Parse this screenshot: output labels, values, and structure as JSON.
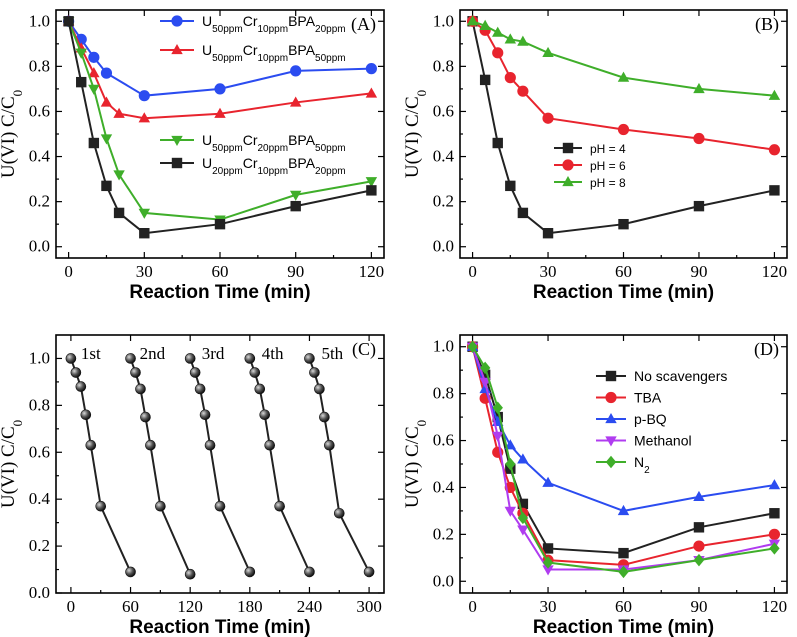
{
  "chart_data": [
    {
      "panel": "(A)",
      "type": "line",
      "xlabel": "Reaction Time (min)",
      "ylabel": "U(VI) C/C0",
      "xlim": [
        -5,
        125
      ],
      "ylim": [
        -0.05,
        1.05
      ],
      "xticks": [
        0,
        30,
        60,
        90,
        120
      ],
      "yticks": [
        0.0,
        0.2,
        0.4,
        0.6,
        0.8,
        1.0
      ],
      "series": [
        {
          "name": "U50ppmCr10ppmBPA20ppm",
          "label_parts": [
            [
              "U",
              ""
            ],
            [
              "50ppm",
              "sub"
            ],
            [
              "Cr",
              ""
            ],
            [
              "10ppm",
              "sub"
            ],
            [
              "BPA",
              ""
            ],
            [
              "20ppm",
              "sub"
            ]
          ],
          "color": "#2b4cf0",
          "marker": "circle",
          "x": [
            0,
            5,
            10,
            15,
            30,
            60,
            90,
            120
          ],
          "y": [
            1.0,
            0.92,
            0.84,
            0.77,
            0.67,
            0.7,
            0.78,
            0.79
          ]
        },
        {
          "name": "U50ppmCr10ppmBPA50ppm",
          "label_parts": [
            [
              "U",
              ""
            ],
            [
              "50ppm",
              "sub"
            ],
            [
              "Cr",
              ""
            ],
            [
              "10ppm",
              "sub"
            ],
            [
              "BPA",
              ""
            ],
            [
              "50ppm",
              "sub"
            ]
          ],
          "color": "#e8242e",
          "marker": "triangle-up",
          "x": [
            0,
            5,
            10,
            15,
            20,
            30,
            60,
            90,
            120
          ],
          "y": [
            1.0,
            0.88,
            0.77,
            0.64,
            0.59,
            0.57,
            0.59,
            0.64,
            0.68
          ]
        },
        {
          "name": "U50ppmCr20ppmBPA50ppm",
          "label_parts": [
            [
              "U",
              ""
            ],
            [
              "50ppm",
              "sub"
            ],
            [
              "Cr",
              ""
            ],
            [
              "20ppm",
              "sub"
            ],
            [
              "BPA",
              ""
            ],
            [
              "50ppm",
              "sub"
            ]
          ],
          "color": "#3fae2a",
          "marker": "triangle-down",
          "x": [
            0,
            5,
            10,
            15,
            20,
            30,
            60,
            90,
            120
          ],
          "y": [
            1.0,
            0.86,
            0.7,
            0.48,
            0.32,
            0.15,
            0.12,
            0.23,
            0.29
          ]
        },
        {
          "name": "U20ppmCr10ppmBPA20ppm",
          "label_parts": [
            [
              "U",
              ""
            ],
            [
              "20ppm",
              "sub"
            ],
            [
              "Cr",
              ""
            ],
            [
              "10ppm",
              "sub"
            ],
            [
              "BPA",
              ""
            ],
            [
              "20ppm",
              "sub"
            ]
          ],
          "color": "#222222",
          "marker": "square",
          "x": [
            0,
            5,
            10,
            15,
            20,
            30,
            60,
            90,
            120
          ],
          "y": [
            1.0,
            0.73,
            0.46,
            0.27,
            0.15,
            0.06,
            0.1,
            0.18,
            0.25
          ]
        }
      ]
    },
    {
      "panel": "(B)",
      "type": "line",
      "xlabel": "Reaction Time (min)",
      "ylabel": "U(VI) C/C0",
      "xlim": [
        -5,
        125
      ],
      "ylim": [
        -0.05,
        1.05
      ],
      "xticks": [
        0,
        30,
        60,
        90,
        120
      ],
      "yticks": [
        0.0,
        0.2,
        0.4,
        0.6,
        0.8,
        1.0
      ],
      "series": [
        {
          "name": "pH = 4",
          "color": "#222222",
          "marker": "square",
          "x": [
            0,
            5,
            10,
            15,
            20,
            30,
            60,
            90,
            120
          ],
          "y": [
            1.0,
            0.74,
            0.46,
            0.27,
            0.15,
            0.06,
            0.1,
            0.18,
            0.25
          ]
        },
        {
          "name": "pH = 6",
          "color": "#e8242e",
          "marker": "circle",
          "x": [
            0,
            5,
            10,
            15,
            20,
            30,
            60,
            90,
            120
          ],
          "y": [
            1.0,
            0.96,
            0.86,
            0.75,
            0.69,
            0.57,
            0.52,
            0.48,
            0.43
          ]
        },
        {
          "name": "pH = 8",
          "color": "#3fae2a",
          "marker": "triangle-up",
          "x": [
            0,
            5,
            10,
            15,
            20,
            30,
            60,
            90,
            120
          ],
          "y": [
            1.0,
            0.98,
            0.95,
            0.92,
            0.91,
            0.86,
            0.75,
            0.7,
            0.67
          ]
        }
      ]
    },
    {
      "panel": "(C)",
      "type": "line",
      "xlabel": "Reaction Time (min)",
      "ylabel": "U(VI) C/C0",
      "xlim": [
        -15,
        315
      ],
      "ylim": [
        0.0,
        1.1
      ],
      "xticks": [
        0,
        60,
        120,
        180,
        240,
        300
      ],
      "yticks": [
        0.0,
        0.2,
        0.4,
        0.6,
        0.8,
        1.0
      ],
      "cycle_labels": [
        {
          "text": "1st",
          "x": 20
        },
        {
          "text": "2nd",
          "x": 82
        },
        {
          "text": "3rd",
          "x": 143
        },
        {
          "text": "4th",
          "x": 203
        },
        {
          "text": "5th",
          "x": 263
        }
      ],
      "series": [
        {
          "name": "cycle 1",
          "color": "#222222",
          "marker": "ball",
          "x": [
            0,
            5,
            10,
            15,
            20,
            30,
            60
          ],
          "y": [
            1.0,
            0.94,
            0.88,
            0.76,
            0.63,
            0.37,
            0.09
          ]
        },
        {
          "name": "cycle 2",
          "color": "#222222",
          "marker": "ball",
          "x": [
            60,
            65,
            70,
            75,
            80,
            90,
            120
          ],
          "y": [
            1.0,
            0.94,
            0.87,
            0.75,
            0.63,
            0.37,
            0.08
          ]
        },
        {
          "name": "cycle 3",
          "color": "#222222",
          "marker": "ball",
          "x": [
            120,
            125,
            130,
            135,
            140,
            150,
            180
          ],
          "y": [
            1.0,
            0.94,
            0.87,
            0.76,
            0.63,
            0.37,
            0.09
          ]
        },
        {
          "name": "cycle 4",
          "color": "#222222",
          "marker": "ball",
          "x": [
            180,
            185,
            190,
            195,
            200,
            210,
            240
          ],
          "y": [
            1.0,
            0.94,
            0.87,
            0.76,
            0.63,
            0.37,
            0.09
          ]
        },
        {
          "name": "cycle 5",
          "color": "#222222",
          "marker": "ball",
          "x": [
            240,
            245,
            250,
            255,
            260,
            270,
            300
          ],
          "y": [
            1.0,
            0.94,
            0.87,
            0.75,
            0.63,
            0.34,
            0.09
          ]
        }
      ]
    },
    {
      "panel": "(D)",
      "type": "line",
      "xlabel": "Reaction Time (min)",
      "ylabel": "U(VI) C/C0",
      "xlim": [
        -5,
        125
      ],
      "ylim": [
        -0.05,
        1.05
      ],
      "xticks": [
        0,
        30,
        60,
        90,
        120
      ],
      "yticks": [
        0.0,
        0.2,
        0.4,
        0.6,
        0.8,
        1.0
      ],
      "series": [
        {
          "name": "No scavengers",
          "color": "#222222",
          "marker": "square",
          "x": [
            0,
            5,
            10,
            15,
            20,
            30,
            60,
            90,
            120
          ],
          "y": [
            1.0,
            0.88,
            0.7,
            0.48,
            0.33,
            0.14,
            0.12,
            0.23,
            0.29
          ]
        },
        {
          "name": "TBA",
          "color": "#e8242e",
          "marker": "circle",
          "x": [
            0,
            5,
            10,
            15,
            20,
            30,
            60,
            90,
            120
          ],
          "y": [
            1.0,
            0.78,
            0.55,
            0.4,
            0.29,
            0.09,
            0.07,
            0.15,
            0.2
          ]
        },
        {
          "name": "p-BQ",
          "color": "#2b4cf0",
          "marker": "triangle-up",
          "x": [
            0,
            5,
            10,
            15,
            20,
            30,
            60,
            90,
            120
          ],
          "y": [
            1.0,
            0.82,
            0.68,
            0.58,
            0.52,
            0.42,
            0.3,
            0.36,
            0.41
          ]
        },
        {
          "name": "Methanol",
          "color": "#b03cf0",
          "marker": "triangle-down",
          "x": [
            0,
            5,
            10,
            15,
            20,
            30,
            60,
            90,
            120
          ],
          "y": [
            1.0,
            0.85,
            0.62,
            0.3,
            0.22,
            0.05,
            0.05,
            0.09,
            0.16
          ]
        },
        {
          "name": "N2",
          "label_parts": [
            [
              "N",
              ""
            ],
            [
              "2",
              "sub"
            ]
          ],
          "color": "#3fae2a",
          "marker": "diamond",
          "x": [
            0,
            5,
            10,
            15,
            20,
            30,
            60,
            90,
            120
          ],
          "y": [
            1.0,
            0.91,
            0.74,
            0.5,
            0.27,
            0.08,
            0.04,
            0.09,
            0.14
          ]
        }
      ]
    }
  ]
}
